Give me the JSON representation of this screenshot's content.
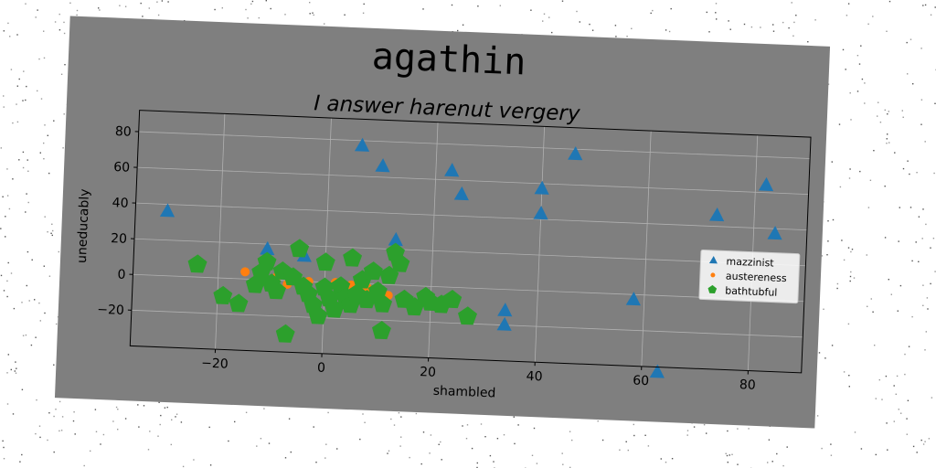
{
  "figure_title": "agathin",
  "chart_data": {
    "type": "scatter",
    "title": "I answer harenut vergery",
    "xlabel": "shambled",
    "ylabel": "uneducably",
    "xlim": [
      -36,
      90
    ],
    "ylim": [
      -40,
      92
    ],
    "xticks": [
      -20,
      0,
      20,
      40,
      60,
      80
    ],
    "yticks": [
      -20,
      0,
      20,
      40,
      60,
      80
    ],
    "xtick_labels": [
      "−20",
      "0",
      "20",
      "40",
      "60",
      "80"
    ],
    "ytick_labels": [
      "−20",
      "0",
      "20",
      "40",
      "60",
      "80"
    ],
    "grid": true,
    "legend_position": "right",
    "series": [
      {
        "name": "mazzinist",
        "marker": "triangle",
        "color": "#1f77b4",
        "points": [
          [
            -30,
            36
          ],
          [
            6,
            77
          ],
          [
            10,
            66
          ],
          [
            23,
            65
          ],
          [
            25,
            52
          ],
          [
            40,
            57
          ],
          [
            40,
            43
          ],
          [
            46,
            77
          ],
          [
            34,
            -12
          ],
          [
            34,
            -20
          ],
          [
            58,
            -3
          ],
          [
            63,
            -43
          ],
          [
            73,
            46
          ],
          [
            82,
            64
          ],
          [
            84,
            37
          ],
          [
            -11,
            17
          ],
          [
            -4,
            14
          ],
          [
            13,
            25
          ]
        ]
      },
      {
        "name": "austereness",
        "marker": "dot",
        "color": "#ff7f0e",
        "points": [
          [
            -15,
            4
          ],
          [
            -12,
            3
          ],
          [
            -9,
            2
          ],
          [
            -6,
            1
          ],
          [
            -3,
            0
          ],
          [
            0,
            -1
          ],
          [
            3,
            -2
          ],
          [
            6,
            -3
          ],
          [
            9,
            -4
          ],
          [
            12,
            -6
          ],
          [
            -10,
            -1
          ],
          [
            -7,
            -2
          ],
          [
            2,
            0
          ],
          [
            5,
            -1
          ],
          [
            8,
            -2
          ],
          [
            11,
            -5
          ]
        ]
      },
      {
        "name": "bathtubful",
        "marker": "pentagon",
        "color": "#2ca02c",
        "points": [
          [
            -24,
            7
          ],
          [
            -19,
            -10
          ],
          [
            -16,
            -14
          ],
          [
            -12,
            4
          ],
          [
            -11,
            10
          ],
          [
            -10,
            -2
          ],
          [
            -9,
            -6
          ],
          [
            -8,
            5
          ],
          [
            -7,
            -30
          ],
          [
            -6,
            2
          ],
          [
            -5,
            18
          ],
          [
            -4,
            -3
          ],
          [
            -3,
            -7
          ],
          [
            -2,
            -13
          ],
          [
            -1,
            -19
          ],
          [
            0,
            11
          ],
          [
            0,
            -3
          ],
          [
            1,
            -9
          ],
          [
            2,
            -15
          ],
          [
            3,
            -2
          ],
          [
            4,
            -8
          ],
          [
            5,
            -12
          ],
          [
            6,
            -6
          ],
          [
            7,
            2
          ],
          [
            8,
            -9
          ],
          [
            9,
            7
          ],
          [
            10,
            -4
          ],
          [
            11,
            -11
          ],
          [
            12,
            5
          ],
          [
            13,
            18
          ],
          [
            14,
            12
          ],
          [
            15,
            -8
          ],
          [
            17,
            -12
          ],
          [
            19,
            -6
          ],
          [
            20,
            -9
          ],
          [
            22,
            -10
          ],
          [
            24,
            -7
          ],
          [
            27,
            -16
          ],
          [
            11,
            -26
          ],
          [
            5,
            14
          ],
          [
            -13,
            -3
          ]
        ]
      }
    ]
  }
}
